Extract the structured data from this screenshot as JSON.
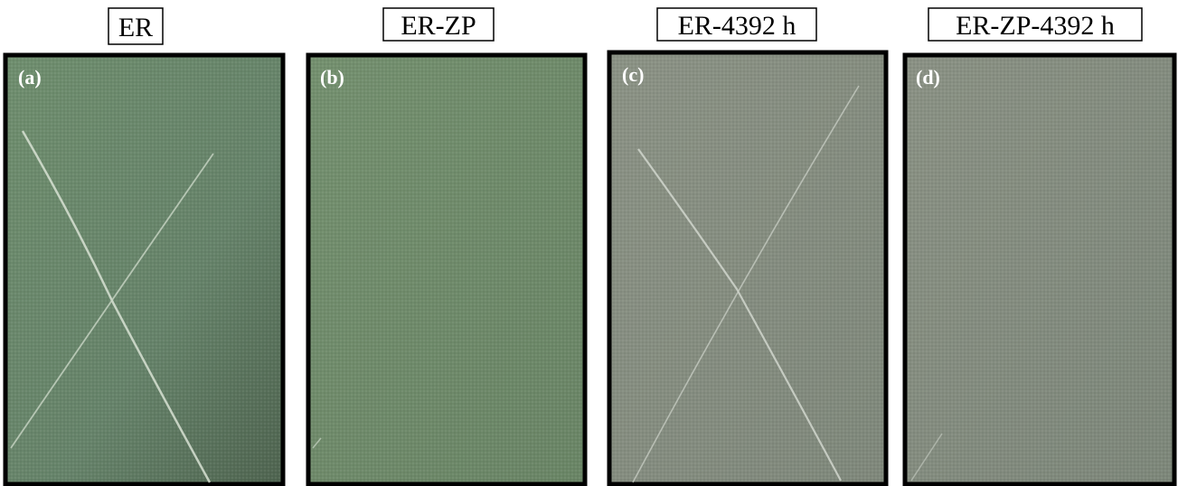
{
  "panels": [
    {
      "title": "ER",
      "label": "(a)"
    },
    {
      "title": "ER-ZP",
      "label": "(b)"
    },
    {
      "title": "ER-4392 h",
      "label": "(c)"
    },
    {
      "title": "ER-ZP-4392 h",
      "label": "(d)"
    }
  ]
}
